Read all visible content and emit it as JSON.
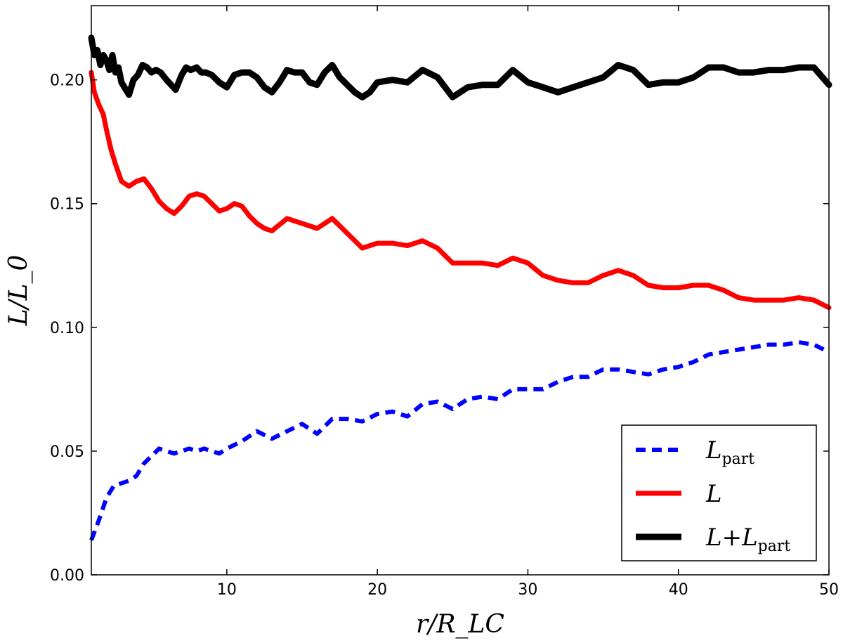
{
  "chart_data": {
    "type": "line",
    "xlabel": "r/R_LC",
    "ylabel": "L/L_0",
    "xlim": [
      1,
      50
    ],
    "ylim": [
      0.0,
      0.23
    ],
    "xticks": [
      10,
      20,
      30,
      40,
      50
    ],
    "xtick_labels": [
      "10",
      "20",
      "30",
      "40",
      "50"
    ],
    "yticks": [
      0.0,
      0.05,
      0.1,
      0.15,
      0.2
    ],
    "ytick_labels": [
      "0.00",
      "0.05",
      "0.10",
      "0.15",
      "0.20"
    ],
    "grid": false,
    "legend_position": "lower-right",
    "series": [
      {
        "name": "L_part",
        "legend_main": "L",
        "legend_sub": "part",
        "legend_rest": "",
        "legend_rest_sub": "",
        "color": "#0000ff",
        "style": "dashed",
        "x": [
          1,
          1.5,
          2,
          2.5,
          3,
          3.5,
          4,
          4.5,
          5,
          5.5,
          6,
          6.5,
          7,
          7.5,
          8,
          8.5,
          9,
          9.5,
          10,
          11,
          12,
          13,
          14,
          15,
          16,
          17,
          18,
          19,
          20,
          21,
          22,
          23,
          24,
          25,
          26,
          27,
          28,
          29,
          30,
          31,
          32,
          33,
          34,
          35,
          36,
          37,
          38,
          39,
          40,
          41,
          42,
          43,
          44,
          45,
          46,
          47,
          48,
          49,
          50
        ],
        "y": [
          0.014,
          0.022,
          0.031,
          0.036,
          0.037,
          0.038,
          0.04,
          0.045,
          0.048,
          0.051,
          0.05,
          0.049,
          0.05,
          0.051,
          0.05,
          0.051,
          0.05,
          0.049,
          0.051,
          0.054,
          0.058,
          0.055,
          0.058,
          0.061,
          0.057,
          0.063,
          0.063,
          0.062,
          0.065,
          0.066,
          0.064,
          0.069,
          0.07,
          0.067,
          0.071,
          0.072,
          0.071,
          0.075,
          0.075,
          0.075,
          0.078,
          0.08,
          0.08,
          0.083,
          0.083,
          0.082,
          0.081,
          0.083,
          0.084,
          0.086,
          0.089,
          0.09,
          0.091,
          0.092,
          0.093,
          0.093,
          0.094,
          0.093,
          0.09
        ]
      },
      {
        "name": "L",
        "legend_main": "L",
        "legend_sub": "",
        "legend_rest": "",
        "legend_rest_sub": "",
        "color": "#ff0000",
        "style": "solid",
        "x": [
          1,
          1.2,
          1.5,
          1.8,
          2,
          2.3,
          2.6,
          3,
          3.5,
          4,
          4.5,
          5,
          5.5,
          6,
          6.5,
          7,
          7.5,
          8,
          8.5,
          9,
          9.5,
          10,
          10.5,
          11,
          11.5,
          12,
          12.5,
          13,
          14,
          15,
          16,
          17,
          18,
          19,
          20,
          21,
          22,
          23,
          24,
          25,
          26,
          27,
          28,
          29,
          30,
          31,
          32,
          33,
          34,
          35,
          36,
          37,
          38,
          39,
          40,
          41,
          42,
          43,
          44,
          45,
          46,
          47,
          48,
          49,
          50
        ],
        "y": [
          0.203,
          0.195,
          0.19,
          0.186,
          0.18,
          0.172,
          0.166,
          0.159,
          0.157,
          0.159,
          0.16,
          0.156,
          0.151,
          0.148,
          0.146,
          0.149,
          0.153,
          0.154,
          0.153,
          0.15,
          0.147,
          0.148,
          0.15,
          0.149,
          0.145,
          0.142,
          0.14,
          0.139,
          0.144,
          0.142,
          0.14,
          0.144,
          0.138,
          0.132,
          0.134,
          0.134,
          0.133,
          0.135,
          0.132,
          0.126,
          0.126,
          0.126,
          0.125,
          0.128,
          0.126,
          0.121,
          0.119,
          0.118,
          0.118,
          0.121,
          0.123,
          0.121,
          0.117,
          0.116,
          0.116,
          0.117,
          0.117,
          0.115,
          0.112,
          0.111,
          0.111,
          0.111,
          0.112,
          0.111,
          0.108
        ]
      },
      {
        "name": "L+L_part",
        "legend_main": "L",
        "legend_sub": "",
        "legend_rest": "+L",
        "legend_rest_sub": "part",
        "color": "#000000",
        "style": "solid",
        "x": [
          1,
          1.2,
          1.4,
          1.6,
          1.8,
          2,
          2.2,
          2.4,
          2.6,
          2.8,
          3,
          3.2,
          3.5,
          3.8,
          4.1,
          4.4,
          4.7,
          5,
          5.3,
          5.6,
          6,
          6.3,
          6.6,
          7,
          7.3,
          7.6,
          8,
          8.3,
          8.6,
          9,
          9.5,
          10,
          10.5,
          11,
          11.5,
          12,
          12.5,
          13,
          13.5,
          14,
          14.5,
          15,
          15.5,
          16,
          16.5,
          17,
          17.5,
          18,
          18.5,
          19,
          19.5,
          20,
          21,
          22,
          23,
          24,
          25,
          26,
          27,
          28,
          29,
          30,
          31,
          32,
          33,
          34,
          35,
          36,
          37,
          38,
          39,
          40,
          41,
          42,
          43,
          44,
          45,
          46,
          47,
          48,
          49,
          50
        ],
        "y": [
          0.217,
          0.21,
          0.212,
          0.206,
          0.21,
          0.208,
          0.204,
          0.21,
          0.203,
          0.205,
          0.199,
          0.197,
          0.194,
          0.2,
          0.202,
          0.206,
          0.205,
          0.203,
          0.204,
          0.203,
          0.2,
          0.198,
          0.196,
          0.202,
          0.205,
          0.204,
          0.205,
          0.203,
          0.203,
          0.202,
          0.199,
          0.197,
          0.202,
          0.203,
          0.203,
          0.201,
          0.197,
          0.195,
          0.199,
          0.204,
          0.203,
          0.203,
          0.199,
          0.198,
          0.203,
          0.206,
          0.201,
          0.198,
          0.195,
          0.193,
          0.195,
          0.199,
          0.2,
          0.199,
          0.204,
          0.201,
          0.193,
          0.197,
          0.198,
          0.198,
          0.204,
          0.199,
          0.197,
          0.195,
          0.197,
          0.199,
          0.201,
          0.206,
          0.204,
          0.198,
          0.199,
          0.199,
          0.201,
          0.205,
          0.205,
          0.203,
          0.203,
          0.204,
          0.204,
          0.205,
          0.205,
          0.198
        ]
      }
    ]
  }
}
